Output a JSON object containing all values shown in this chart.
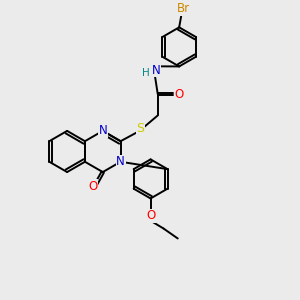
{
  "bg_color": "#ebebeb",
  "bond_color": "#000000",
  "bond_width": 1.4,
  "atom_colors": {
    "N": "#0000cc",
    "O": "#ff0000",
    "S": "#cccc00",
    "Br": "#cc8800",
    "H": "#008888",
    "C": "#000000"
  },
  "font_size": 8.5,
  "ring_r": 0.72
}
